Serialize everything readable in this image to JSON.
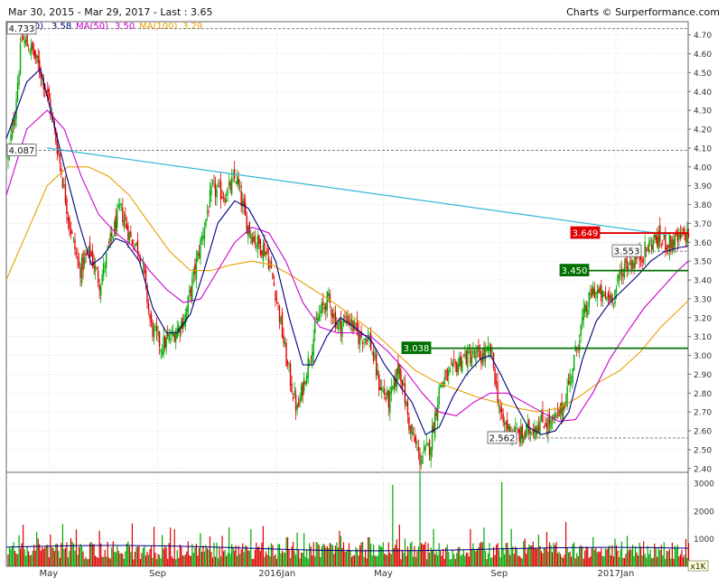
{
  "header": {
    "range": "Mar 30, 2015 - Mar 29, 2017 - Last : 3.65",
    "credit": "Charts © Surperformance.com",
    "legend": [
      {
        "label": "MA(20)",
        "value": "3.58",
        "color": "#000080"
      },
      {
        "label": "MA(50)",
        "value": "3.50",
        "color": "#cc00cc"
      },
      {
        "label": "MA(100)",
        "value": "3.29",
        "color": "#e8a000"
      }
    ]
  },
  "chart_data": [
    {
      "type": "candlestick",
      "ylim": [
        2.38,
        4.77
      ],
      "yticks": [
        "4.70",
        "4.60",
        "4.50",
        "4.40",
        "4.30",
        "4.20",
        "4.10",
        "4.00",
        "3.90",
        "3.80",
        "3.70",
        "3.60",
        "3.50",
        "3.40",
        "3.30",
        "3.20",
        "3.10",
        "3.00",
        "2.90",
        "2.80",
        "2.70",
        "2.60",
        "2.50",
        "2.40"
      ],
      "ytick_values": [
        4.7,
        4.6,
        4.5,
        4.4,
        4.3,
        4.2,
        4.1,
        4.0,
        3.9,
        3.8,
        3.7,
        3.6,
        3.5,
        3.4,
        3.3,
        3.2,
        3.1,
        3.0,
        2.9,
        2.8,
        2.7,
        2.6,
        2.5,
        2.4
      ],
      "x_labels": [
        "May",
        "Sep",
        "2016Jan",
        "May",
        "Sep",
        "2017Jan"
      ],
      "x_label_pos": [
        0.062,
        0.222,
        0.397,
        0.553,
        0.723,
        0.894
      ],
      "n_days": 500,
      "level_lines": [
        {
          "label": "4.733",
          "value": 4.733,
          "style": "dashed",
          "color": "#555555",
          "label_bg": "#ffffff"
        },
        {
          "label": "4.087",
          "value": 4.087,
          "style": "dashed",
          "color": "#555555",
          "label_bg": "#ffffff"
        },
        {
          "label": "2.562",
          "value": 2.562,
          "style": "dashed",
          "color": "#555555",
          "label_bg": "#ffffff"
        },
        {
          "label": "3.553",
          "value": 3.553,
          "style": "dashed",
          "color": "#555555",
          "label_bg": "#ffffff"
        },
        {
          "label": "3.649",
          "value": 3.649,
          "style": "solid",
          "color": "#e00000",
          "label_bg": "#e00000"
        },
        {
          "label": "3.450",
          "value": 3.45,
          "style": "solid",
          "color": "#007000",
          "label_bg": "#007000"
        },
        {
          "label": "3.038",
          "value": 3.038,
          "style": "solid",
          "color": "#007000",
          "label_bg": "#007000"
        }
      ],
      "trendline": {
        "from": [
          0.06,
          4.1
        ],
        "to": [
          0.97,
          3.64
        ],
        "color": "#35b5d5"
      },
      "price_path": [
        [
          0.0,
          4.05
        ],
        [
          0.01,
          4.3
        ],
        [
          0.02,
          4.68
        ],
        [
          0.035,
          4.62
        ],
        [
          0.05,
          4.48
        ],
        [
          0.06,
          4.35
        ],
        [
          0.075,
          4.05
        ],
        [
          0.09,
          3.7
        ],
        [
          0.105,
          3.45
        ],
        [
          0.12,
          3.55
        ],
        [
          0.135,
          3.38
        ],
        [
          0.15,
          3.6
        ],
        [
          0.165,
          3.78
        ],
        [
          0.18,
          3.62
        ],
        [
          0.195,
          3.55
        ],
        [
          0.21,
          3.15
        ],
        [
          0.225,
          3.05
        ],
        [
          0.24,
          3.1
        ],
        [
          0.26,
          3.2
        ],
        [
          0.28,
          3.55
        ],
        [
          0.3,
          3.88
        ],
        [
          0.32,
          3.85
        ],
        [
          0.335,
          3.95
        ],
        [
          0.35,
          3.7
        ],
        [
          0.365,
          3.6
        ],
        [
          0.38,
          3.55
        ],
        [
          0.395,
          3.3
        ],
        [
          0.41,
          2.95
        ],
        [
          0.425,
          2.7
        ],
        [
          0.44,
          2.95
        ],
        [
          0.455,
          3.2
        ],
        [
          0.47,
          3.3
        ],
        [
          0.485,
          3.15
        ],
        [
          0.5,
          3.2
        ],
        [
          0.515,
          3.1
        ],
        [
          0.53,
          3.1
        ],
        [
          0.545,
          2.85
        ],
        [
          0.56,
          2.75
        ],
        [
          0.575,
          2.95
        ],
        [
          0.59,
          2.62
        ],
        [
          0.605,
          2.45
        ],
        [
          0.62,
          2.52
        ],
        [
          0.635,
          2.85
        ],
        [
          0.65,
          2.9
        ],
        [
          0.665,
          2.98
        ],
        [
          0.68,
          3.0
        ],
        [
          0.695,
          2.99
        ],
        [
          0.71,
          3.02
        ],
        [
          0.725,
          2.65
        ],
        [
          0.74,
          2.6
        ],
        [
          0.755,
          2.57
        ],
        [
          0.77,
          2.62
        ],
        [
          0.785,
          2.65
        ],
        [
          0.8,
          2.64
        ],
        [
          0.815,
          2.72
        ],
        [
          0.83,
          2.95
        ],
        [
          0.845,
          3.2
        ],
        [
          0.86,
          3.35
        ],
        [
          0.875,
          3.3
        ],
        [
          0.89,
          3.32
        ],
        [
          0.905,
          3.48
        ],
        [
          0.92,
          3.5
        ],
        [
          0.935,
          3.55
        ],
        [
          0.95,
          3.62
        ],
        [
          0.965,
          3.6
        ],
        [
          0.98,
          3.6
        ],
        [
          1.0,
          3.65
        ]
      ],
      "ma20": [
        [
          0.0,
          4.15
        ],
        [
          0.03,
          4.45
        ],
        [
          0.05,
          4.52
        ],
        [
          0.065,
          4.3
        ],
        [
          0.085,
          4.0
        ],
        [
          0.105,
          3.72
        ],
        [
          0.125,
          3.48
        ],
        [
          0.14,
          3.52
        ],
        [
          0.16,
          3.62
        ],
        [
          0.175,
          3.6
        ],
        [
          0.195,
          3.5
        ],
        [
          0.215,
          3.25
        ],
        [
          0.235,
          3.12
        ],
        [
          0.25,
          3.12
        ],
        [
          0.27,
          3.22
        ],
        [
          0.29,
          3.45
        ],
        [
          0.31,
          3.7
        ],
        [
          0.335,
          3.82
        ],
        [
          0.355,
          3.78
        ],
        [
          0.375,
          3.65
        ],
        [
          0.395,
          3.5
        ],
        [
          0.415,
          3.2
        ],
        [
          0.435,
          2.95
        ],
        [
          0.45,
          2.95
        ],
        [
          0.47,
          3.1
        ],
        [
          0.49,
          3.2
        ],
        [
          0.51,
          3.15
        ],
        [
          0.535,
          3.08
        ],
        [
          0.555,
          2.95
        ],
        [
          0.575,
          2.85
        ],
        [
          0.595,
          2.75
        ],
        [
          0.615,
          2.58
        ],
        [
          0.635,
          2.62
        ],
        [
          0.655,
          2.78
        ],
        [
          0.675,
          2.9
        ],
        [
          0.695,
          2.98
        ],
        [
          0.71,
          3.0
        ],
        [
          0.725,
          2.9
        ],
        [
          0.745,
          2.75
        ],
        [
          0.765,
          2.62
        ],
        [
          0.785,
          2.58
        ],
        [
          0.805,
          2.6
        ],
        [
          0.825,
          2.7
        ],
        [
          0.845,
          2.98
        ],
        [
          0.865,
          3.18
        ],
        [
          0.885,
          3.28
        ],
        [
          0.905,
          3.35
        ],
        [
          0.925,
          3.42
        ],
        [
          0.945,
          3.5
        ],
        [
          0.965,
          3.55
        ],
        [
          0.985,
          3.57
        ],
        [
          1.0,
          3.58
        ]
      ],
      "ma50": [
        [
          0.0,
          3.85
        ],
        [
          0.03,
          4.2
        ],
        [
          0.06,
          4.3
        ],
        [
          0.085,
          4.2
        ],
        [
          0.11,
          3.95
        ],
        [
          0.135,
          3.75
        ],
        [
          0.16,
          3.65
        ],
        [
          0.185,
          3.58
        ],
        [
          0.21,
          3.45
        ],
        [
          0.235,
          3.35
        ],
        [
          0.26,
          3.28
        ],
        [
          0.285,
          3.3
        ],
        [
          0.31,
          3.45
        ],
        [
          0.335,
          3.6
        ],
        [
          0.36,
          3.68
        ],
        [
          0.385,
          3.65
        ],
        [
          0.41,
          3.5
        ],
        [
          0.435,
          3.28
        ],
        [
          0.46,
          3.15
        ],
        [
          0.485,
          3.12
        ],
        [
          0.51,
          3.12
        ],
        [
          0.535,
          3.1
        ],
        [
          0.56,
          3.02
        ],
        [
          0.585,
          2.92
        ],
        [
          0.61,
          2.8
        ],
        [
          0.635,
          2.7
        ],
        [
          0.66,
          2.68
        ],
        [
          0.685,
          2.75
        ],
        [
          0.71,
          2.8
        ],
        [
          0.735,
          2.8
        ],
        [
          0.76,
          2.75
        ],
        [
          0.785,
          2.7
        ],
        [
          0.81,
          2.65
        ],
        [
          0.835,
          2.66
        ],
        [
          0.86,
          2.8
        ],
        [
          0.885,
          2.98
        ],
        [
          0.91,
          3.12
        ],
        [
          0.935,
          3.25
        ],
        [
          0.96,
          3.35
        ],
        [
          0.985,
          3.45
        ],
        [
          1.0,
          3.5
        ]
      ],
      "ma100": [
        [
          0.0,
          3.4
        ],
        [
          0.03,
          3.65
        ],
        [
          0.06,
          3.9
        ],
        [
          0.09,
          4.0
        ],
        [
          0.12,
          4.0
        ],
        [
          0.15,
          3.95
        ],
        [
          0.18,
          3.85
        ],
        [
          0.21,
          3.7
        ],
        [
          0.24,
          3.55
        ],
        [
          0.27,
          3.45
        ],
        [
          0.3,
          3.45
        ],
        [
          0.33,
          3.48
        ],
        [
          0.36,
          3.5
        ],
        [
          0.39,
          3.48
        ],
        [
          0.42,
          3.42
        ],
        [
          0.45,
          3.35
        ],
        [
          0.48,
          3.28
        ],
        [
          0.51,
          3.2
        ],
        [
          0.54,
          3.12
        ],
        [
          0.57,
          3.02
        ],
        [
          0.6,
          2.92
        ],
        [
          0.63,
          2.86
        ],
        [
          0.66,
          2.82
        ],
        [
          0.69,
          2.78
        ],
        [
          0.72,
          2.75
        ],
        [
          0.75,
          2.72
        ],
        [
          0.78,
          2.7
        ],
        [
          0.81,
          2.72
        ],
        [
          0.84,
          2.78
        ],
        [
          0.87,
          2.86
        ],
        [
          0.9,
          2.92
        ],
        [
          0.93,
          3.02
        ],
        [
          0.96,
          3.15
        ],
        [
          1.0,
          3.29
        ]
      ]
    },
    {
      "type": "bar",
      "title": "",
      "ylim": [
        0,
        3400
      ],
      "yticks": [
        "3000",
        "2000",
        "1000"
      ],
      "ytick_values": [
        3000,
        2000,
        1000
      ],
      "unit_label": "x1K",
      "avg_level": 650,
      "spikes": [
        [
          0.022,
          1500
        ],
        [
          0.062,
          1150
        ],
        [
          0.105,
          700
        ],
        [
          0.155,
          900
        ],
        [
          0.182,
          1550
        ],
        [
          0.238,
          1400
        ],
        [
          0.265,
          900
        ],
        [
          0.282,
          1200
        ],
        [
          0.315,
          1100
        ],
        [
          0.375,
          1450
        ],
        [
          0.41,
          1050
        ],
        [
          0.435,
          1200
        ],
        [
          0.53,
          1050
        ],
        [
          0.565,
          2950
        ],
        [
          0.575,
          1500
        ],
        [
          0.605,
          3400
        ],
        [
          0.625,
          1350
        ],
        [
          0.7,
          1400
        ],
        [
          0.725,
          3050
        ],
        [
          0.74,
          1350
        ],
        [
          0.76,
          1000
        ],
        [
          0.82,
          1600
        ],
        [
          0.86,
          1050
        ],
        [
          0.91,
          1100
        ]
      ]
    }
  ],
  "colors": {
    "up": "#00aa00",
    "down": "#dd0000",
    "grid": "#cccccc",
    "axis_text": "#333333"
  }
}
